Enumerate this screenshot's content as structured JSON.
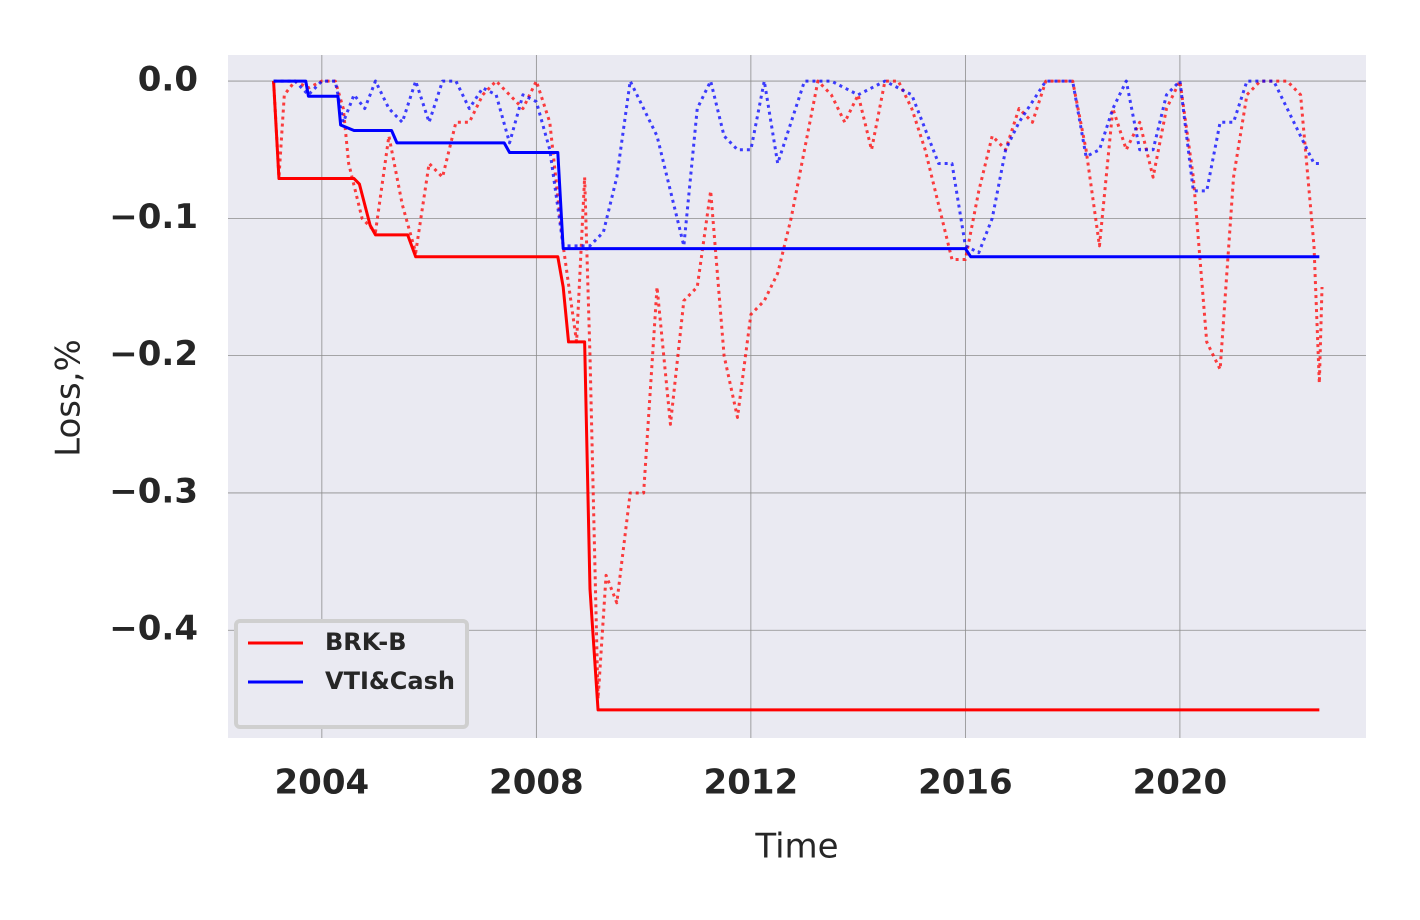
{
  "chart_data": {
    "type": "line",
    "xlabel": "Time",
    "ylabel": "Loss,%",
    "xlim": [
      2002.25,
      2023.47
    ],
    "ylim": [
      -0.4785,
      0.019
    ],
    "xticks": [
      2004,
      2008,
      2012,
      2016,
      2020
    ],
    "yticks": [
      {
        "value": 0,
        "label": "0.0"
      },
      {
        "value": -0.1,
        "label": "−0.1"
      },
      {
        "value": -0.2,
        "label": "−0.2"
      },
      {
        "value": -0.3,
        "label": "−0.3"
      },
      {
        "value": -0.4,
        "label": "−0.4"
      }
    ],
    "grid": true,
    "legend": "lower left",
    "series": [
      {
        "color": "#ff0000",
        "linestyle": "dotted",
        "x": [
          2003.1,
          2003.2,
          2003.3,
          2003.5,
          2003.75,
          2004.0,
          2004.25,
          2004.4,
          2004.5,
          2004.75,
          2005.0,
          2005.25,
          2005.5,
          2005.75,
          2006.0,
          2006.25,
          2006.5,
          2006.75,
          2007.0,
          2007.25,
          2007.5,
          2007.75,
          2008.0,
          2008.25,
          2008.5,
          2008.75,
          2008.9,
          2009.0,
          2009.15,
          2009.3,
          2009.5,
          2009.75,
          2010.0,
          2010.25,
          2010.5,
          2010.75,
          2011.0,
          2011.25,
          2011.5,
          2011.75,
          2012.0,
          2012.25,
          2012.5,
          2012.75,
          2013.0,
          2013.25,
          2013.5,
          2013.75,
          2014.0,
          2014.25,
          2014.5,
          2014.75,
          2015.0,
          2015.25,
          2015.5,
          2015.75,
          2016.0,
          2016.25,
          2016.5,
          2016.75,
          2017.0,
          2017.25,
          2017.5,
          2017.75,
          2018.0,
          2018.25,
          2018.5,
          2018.75,
          2019.0,
          2019.25,
          2019.5,
          2019.75,
          2020.0,
          2020.25,
          2020.5,
          2020.75,
          2021.0,
          2021.25,
          2021.5,
          2021.75,
          2022.0,
          2022.25,
          2022.5,
          2022.6,
          2022.65
        ],
        "values": [
          0,
          -0.07,
          -0.01,
          0,
          -0.005,
          0,
          0,
          -0.02,
          -0.06,
          -0.1,
          -0.11,
          -0.04,
          -0.09,
          -0.125,
          -0.06,
          -0.07,
          -0.03,
          -0.03,
          -0.01,
          0,
          -0.01,
          -0.02,
          0,
          -0.03,
          -0.12,
          -0.19,
          -0.07,
          -0.2,
          -0.45,
          -0.36,
          -0.38,
          -0.3,
          -0.3,
          -0.15,
          -0.25,
          -0.16,
          -0.15,
          -0.08,
          -0.2,
          -0.245,
          -0.17,
          -0.16,
          -0.14,
          -0.1,
          -0.05,
          0,
          -0.01,
          -0.03,
          -0.01,
          -0.05,
          0,
          0,
          -0.02,
          -0.05,
          -0.09,
          -0.13,
          -0.13,
          -0.08,
          -0.04,
          -0.05,
          -0.02,
          -0.03,
          0,
          0,
          0,
          -0.05,
          -0.12,
          -0.02,
          -0.05,
          -0.03,
          -0.07,
          -0.02,
          0,
          -0.07,
          -0.19,
          -0.21,
          -0.07,
          -0.01,
          0,
          0,
          0,
          -0.01,
          -0.12,
          -0.22,
          -0.15
        ]
      },
      {
        "name": "BRK-B",
        "color": "#ff0000",
        "linestyle": "solid",
        "x": [
          2003.1,
          2003.2,
          2004.6,
          2004.7,
          2004.8,
          2004.9,
          2005.0,
          2005.6,
          2005.75,
          2008.4,
          2008.5,
          2008.6,
          2008.9,
          2009.0,
          2009.15,
          2022.6
        ],
        "values": [
          0,
          -0.071,
          -0.071,
          -0.075,
          -0.09,
          -0.105,
          -0.112,
          -0.112,
          -0.128,
          -0.128,
          -0.15,
          -0.19,
          -0.19,
          -0.37,
          -0.458,
          -0.458
        ]
      },
      {
        "color": "#0000ff",
        "linestyle": "dotted",
        "x": [
          2003.1,
          2003.5,
          2003.75,
          2004.0,
          2004.25,
          2004.4,
          2004.6,
          2004.8,
          2005.0,
          2005.25,
          2005.5,
          2005.75,
          2006.0,
          2006.25,
          2006.5,
          2006.75,
          2007.0,
          2007.25,
          2007.5,
          2007.75,
          2008.0,
          2008.25,
          2008.5,
          2008.75,
          2009.0,
          2009.25,
          2009.5,
          2009.75,
          2010.0,
          2010.25,
          2010.5,
          2010.75,
          2011.0,
          2011.25,
          2011.5,
          2011.75,
          2012.0,
          2012.25,
          2012.5,
          2012.75,
          2013.0,
          2013.5,
          2014.0,
          2014.5,
          2015.0,
          2015.5,
          2015.75,
          2016.0,
          2016.25,
          2016.5,
          2016.75,
          2017.0,
          2017.5,
          2018.0,
          2018.25,
          2018.5,
          2018.75,
          2019.0,
          2019.25,
          2019.5,
          2019.75,
          2020.0,
          2020.25,
          2020.5,
          2020.75,
          2021.0,
          2021.25,
          2021.75,
          2022.0,
          2022.25,
          2022.5,
          2022.65
        ],
        "values": [
          0,
          0,
          -0.01,
          0,
          0,
          -0.03,
          -0.01,
          -0.02,
          0,
          -0.02,
          -0.03,
          0,
          -0.03,
          0,
          0,
          -0.02,
          -0.005,
          -0.01,
          -0.045,
          -0.01,
          -0.015,
          -0.05,
          -0.12,
          -0.12,
          -0.12,
          -0.11,
          -0.07,
          0,
          -0.02,
          -0.04,
          -0.08,
          -0.12,
          -0.02,
          0,
          -0.04,
          -0.05,
          -0.05,
          0,
          -0.06,
          -0.03,
          0,
          0,
          -0.01,
          0,
          -0.01,
          -0.06,
          -0.06,
          -0.12,
          -0.125,
          -0.1,
          -0.05,
          -0.03,
          0,
          0,
          -0.055,
          -0.05,
          -0.02,
          0,
          -0.05,
          -0.05,
          -0.01,
          0,
          -0.08,
          -0.08,
          -0.03,
          -0.03,
          0,
          0,
          -0.02,
          -0.04,
          -0.06,
          -0.06
        ]
      },
      {
        "name": "VTI&Cash",
        "color": "#0000ff",
        "linestyle": "solid",
        "x": [
          2003.1,
          2003.7,
          2003.75,
          2004.3,
          2004.35,
          2004.6,
          2005.3,
          2005.4,
          2007.4,
          2007.5,
          2008.4,
          2008.5,
          2016.0,
          2016.1,
          2022.6
        ],
        "values": [
          0,
          0,
          -0.011,
          -0.011,
          -0.032,
          -0.036,
          -0.036,
          -0.045,
          -0.045,
          -0.052,
          -0.052,
          -0.122,
          -0.122,
          -0.128,
          -0.128
        ]
      }
    ]
  }
}
